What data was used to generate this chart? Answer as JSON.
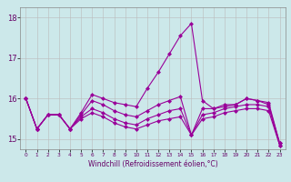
{
  "xlabel": "Windchill (Refroidissement éolien,°C)",
  "background_color": "#cce8ea",
  "line_color": "#990099",
  "grid_color": "#bbbbbb",
  "xlim": [
    -0.5,
    23.5
  ],
  "ylim": [
    14.75,
    18.25
  ],
  "yticks": [
    15,
    16,
    17,
    18
  ],
  "xticks": [
    0,
    1,
    2,
    3,
    4,
    5,
    6,
    7,
    8,
    9,
    10,
    11,
    12,
    13,
    14,
    15,
    16,
    17,
    18,
    19,
    20,
    21,
    22,
    23
  ],
  "series": [
    [
      16.0,
      15.25,
      15.6,
      15.6,
      15.25,
      15.65,
      16.1,
      16.0,
      15.9,
      15.85,
      15.8,
      16.25,
      16.65,
      17.1,
      17.55,
      17.85,
      15.95,
      15.75,
      15.8,
      15.85,
      16.0,
      15.95,
      15.9,
      14.9
    ],
    [
      16.0,
      15.25,
      15.6,
      15.6,
      15.25,
      15.6,
      15.95,
      15.85,
      15.7,
      15.6,
      15.55,
      15.7,
      15.85,
      15.95,
      16.05,
      15.1,
      15.75,
      15.75,
      15.85,
      15.85,
      16.0,
      15.95,
      15.85,
      14.9
    ],
    [
      16.0,
      15.25,
      15.6,
      15.6,
      15.25,
      15.55,
      15.75,
      15.65,
      15.5,
      15.4,
      15.35,
      15.5,
      15.6,
      15.7,
      15.75,
      15.1,
      15.6,
      15.65,
      15.75,
      15.8,
      15.85,
      15.85,
      15.8,
      14.85
    ],
    [
      16.0,
      15.25,
      15.6,
      15.6,
      15.25,
      15.5,
      15.65,
      15.55,
      15.4,
      15.3,
      15.25,
      15.35,
      15.45,
      15.5,
      15.55,
      15.1,
      15.5,
      15.55,
      15.65,
      15.7,
      15.75,
      15.75,
      15.7,
      14.85
    ]
  ],
  "markersize": 2.5,
  "linewidth": 0.8
}
